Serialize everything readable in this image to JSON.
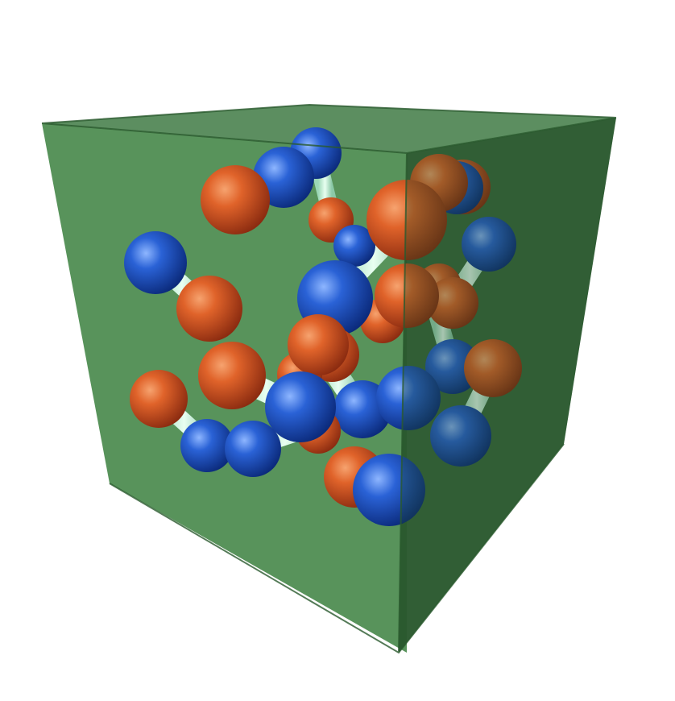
{
  "scene": {
    "colors": {
      "background": "#ffffff",
      "box_front": "#4a8a4d",
      "box_side": "#2f5f33",
      "box_top": "#3f7a44",
      "bond": "#bfe8cc",
      "atom_orange": "#e0632a",
      "atom_blue": "#2a62d6"
    },
    "legend": []
  }
}
